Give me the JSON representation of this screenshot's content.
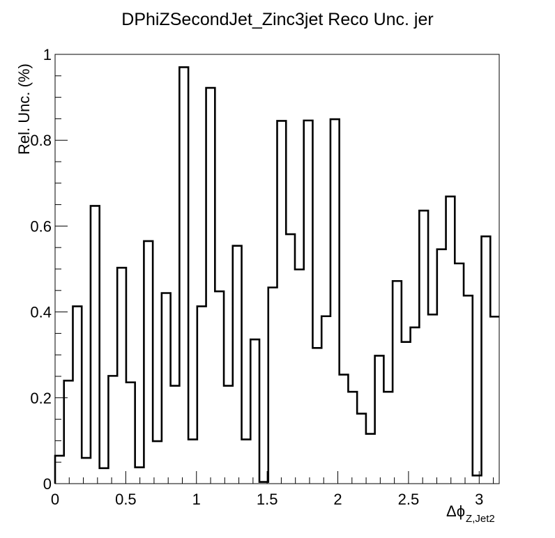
{
  "chart_data": {
    "type": "histogram",
    "title": "DPhiZSecondJet_Zinc3jet Reco Unc. jer",
    "xlabel_main": "Δϕ",
    "xlabel_sub": "Z,Jet2",
    "ylabel": "Rel. Unc. (%)",
    "xlim": [
      0,
      3.1416
    ],
    "ylim": [
      0,
      1.0
    ],
    "x_ticks": [
      "0",
      "0.5",
      "1",
      "1.5",
      "2",
      "2.5",
      "3"
    ],
    "y_ticks": [
      "0",
      "0.2",
      "0.4",
      "0.6",
      "0.8",
      "1"
    ],
    "grid": false,
    "legend": "none",
    "line_color": "#000000",
    "bin_edges": [
      0,
      0.0628,
      0.1257,
      0.1885,
      0.2513,
      0.3142,
      0.377,
      0.4398,
      0.5027,
      0.5655,
      0.6283,
      0.6912,
      0.754,
      0.8168,
      0.8796,
      0.9425,
      1.0053,
      1.0681,
      1.131,
      1.1938,
      1.2566,
      1.3195,
      1.3823,
      1.4451,
      1.508,
      1.5708,
      1.6336,
      1.6965,
      1.7593,
      1.8221,
      1.885,
      1.9478,
      2.0106,
      2.0735,
      2.1363,
      2.1991,
      2.2619,
      2.3248,
      2.3876,
      2.4504,
      2.5133,
      2.5761,
      2.6389,
      2.7018,
      2.7646,
      2.8274,
      2.8903,
      2.9531,
      3.0159,
      3.0788,
      3.1416
    ],
    "values": [
      0.065,
      0.24,
      0.413,
      0.06,
      0.647,
      0.036,
      0.251,
      0.503,
      0.236,
      0.038,
      0.565,
      0.099,
      0.444,
      0.228,
      0.97,
      0.103,
      0.413,
      0.922,
      0.448,
      0.228,
      0.554,
      0.103,
      0.336,
      0.004,
      0.457,
      0.845,
      0.581,
      0.499,
      0.846,
      0.316,
      0.39,
      0.849,
      0.254,
      0.214,
      0.163,
      0.116,
      0.298,
      0.214,
      0.472,
      0.33,
      0.364,
      0.636,
      0.394,
      0.546,
      0.669,
      0.513,
      0.438,
      0.019,
      0.576,
      0.389
    ]
  }
}
